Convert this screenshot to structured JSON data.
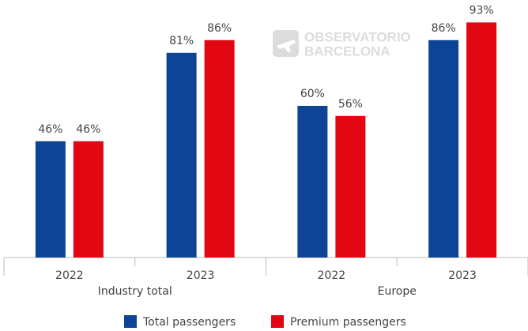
{
  "chart_data": {
    "type": "bar",
    "categories": [
      "2022",
      "2023",
      "2022",
      "2023"
    ],
    "groups": [
      "Industry total",
      "Europe"
    ],
    "series": [
      {
        "name": "Total passengers",
        "color": "#0d4496",
        "values": [
          46,
          81,
          60,
          86
        ],
        "value_labels": [
          "46%",
          "81%",
          "60%",
          "86%"
        ]
      },
      {
        "name": "Premium passengers",
        "color": "#e30613",
        "values": [
          46,
          86,
          56,
          93
        ],
        "value_labels": [
          "46%",
          "86%",
          "56%",
          "93%"
        ]
      }
    ],
    "watermark": [
      "OBSERVATORIO",
      "BARCELONA"
    ]
  }
}
